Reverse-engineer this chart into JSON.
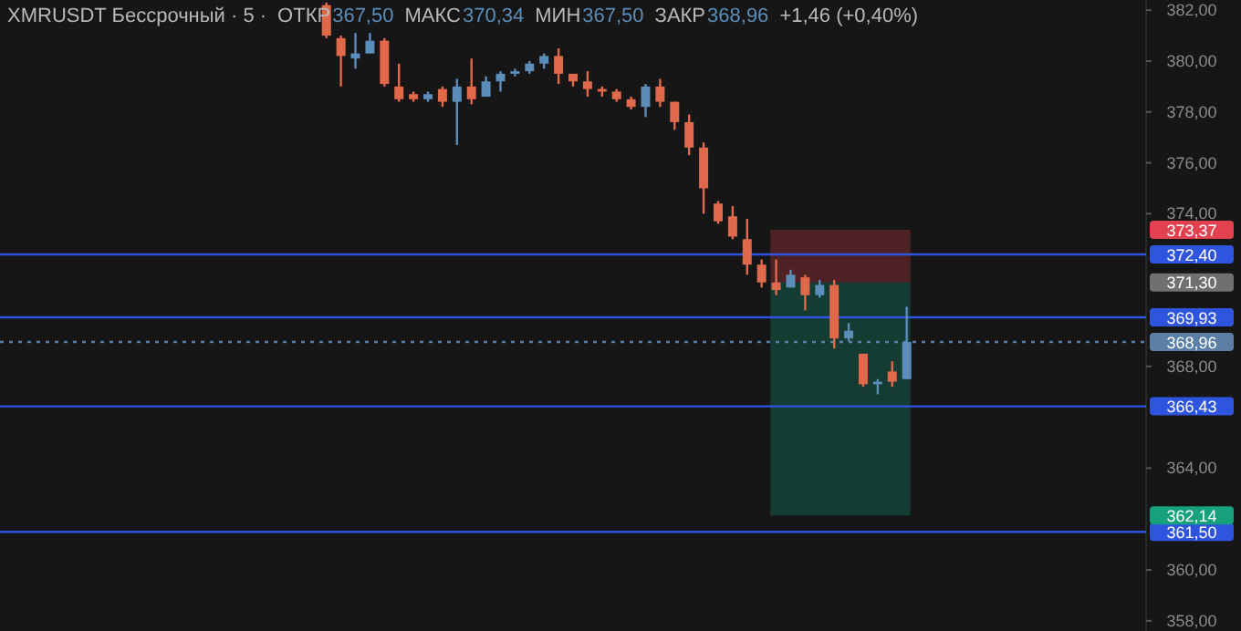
{
  "chart_data": {
    "type": "candlestick",
    "title": "XMRUSDT Бессрочный · 5 ·",
    "subtitle": [
      {
        "text": "ОТКР",
        "kind": "key"
      },
      {
        "text": "367,50",
        "kind": "num"
      },
      {
        "text": "МАКС",
        "kind": "key"
      },
      {
        "text": "370,34",
        "kind": "num"
      },
      {
        "text": "МИН",
        "kind": "key"
      },
      {
        "text": "367,50",
        "kind": "num"
      },
      {
        "text": "ЗАКР",
        "kind": "key"
      },
      {
        "text": "368,96",
        "kind": "num"
      },
      {
        "text": "+1,46 (+0,40%)",
        "kind": "key"
      }
    ],
    "categories": [
      null,
      null,
      null,
      null,
      null,
      null,
      null,
      null,
      null,
      null,
      null,
      null,
      null,
      null,
      null,
      null,
      null,
      null,
      null,
      null,
      null,
      null,
      null,
      null,
      null,
      null,
      null,
      null,
      null,
      null,
      null,
      null,
      null,
      null,
      null,
      null,
      null,
      null,
      null,
      null,
      null,
      null,
      null,
      null,
      null,
      null,
      null,
      null,
      null,
      null,
      null,
      null,
      null,
      null,
      null,
      null,
      null,
      null,
      null,
      null,
      null,
      null,
      null,
      null,
      null,
      null,
      null,
      null,
      null,
      null,
      null,
      null,
      null,
      null,
      null,
      null,
      null,
      null,
      null
    ],
    "ohlc": [
      null,
      null,
      null,
      null,
      null,
      null,
      null,
      null,
      null,
      null,
      null,
      null,
      null,
      null,
      null,
      null,
      null,
      null,
      null,
      null,
      null,
      null,
      [
        382.2,
        382.3,
        380.9,
        381.0
      ],
      [
        380.9,
        381.0,
        379.0,
        380.2
      ],
      [
        380.1,
        381.1,
        379.7,
        380.3
      ],
      [
        380.3,
        381.1,
        380.3,
        380.8
      ],
      [
        380.8,
        380.9,
        379.0,
        379.1
      ],
      [
        379.0,
        379.9,
        378.4,
        378.5
      ],
      [
        378.7,
        378.8,
        378.4,
        378.5
      ],
      [
        378.5,
        378.8,
        378.4,
        378.7
      ],
      [
        378.9,
        379.0,
        378.2,
        378.4
      ],
      [
        378.4,
        379.3,
        376.7,
        379.0
      ],
      [
        379.0,
        380.1,
        378.3,
        378.5
      ],
      [
        378.6,
        379.4,
        378.6,
        379.2
      ],
      [
        379.2,
        379.6,
        378.8,
        379.5
      ],
      [
        379.5,
        379.7,
        379.4,
        379.6
      ],
      [
        379.6,
        380.0,
        379.5,
        379.9
      ],
      [
        379.9,
        380.3,
        379.7,
        380.2
      ],
      [
        380.2,
        380.5,
        379.1,
        379.5
      ],
      [
        379.5,
        379.5,
        379.0,
        379.2
      ],
      [
        379.2,
        379.6,
        378.6,
        378.9
      ],
      [
        378.9,
        379.0,
        378.6,
        378.8
      ],
      [
        378.8,
        378.9,
        378.4,
        378.5
      ],
      [
        378.5,
        378.6,
        378.1,
        378.2
      ],
      [
        378.2,
        379.1,
        377.8,
        379.0
      ],
      [
        379.0,
        379.3,
        378.2,
        378.4
      ],
      [
        378.4,
        378.4,
        377.3,
        377.6
      ],
      [
        377.6,
        377.9,
        376.3,
        376.6
      ],
      [
        376.6,
        376.8,
        374.0,
        375.0
      ],
      [
        374.4,
        374.5,
        373.6,
        373.7
      ],
      [
        373.9,
        374.3,
        373.0,
        373.1
      ],
      [
        373.0,
        373.8,
        371.6,
        372.0
      ],
      [
        372.0,
        372.2,
        371.1,
        371.3
      ],
      [
        371.3,
        372.2,
        370.8,
        371.0
      ],
      [
        371.1,
        371.8,
        371.1,
        371.6
      ],
      [
        371.5,
        371.6,
        370.2,
        370.8
      ],
      [
        370.8,
        371.4,
        370.7,
        371.2
      ],
      [
        371.2,
        371.4,
        368.7,
        369.1
      ],
      [
        369.1,
        369.7,
        369.0,
        369.4
      ],
      [
        368.5,
        368.5,
        367.2,
        367.3
      ],
      [
        367.3,
        367.5,
        366.9,
        367.4
      ],
      [
        367.8,
        368.2,
        367.2,
        367.4
      ],
      [
        367.5,
        370.34,
        367.5,
        368.96
      ],
      null,
      null,
      null,
      null,
      null,
      null,
      null,
      null,
      null,
      null,
      null,
      null,
      null,
      null,
      null,
      null
    ],
    "colors": [
      null,
      null,
      null,
      null,
      null,
      null,
      null,
      null,
      null,
      null,
      null,
      null,
      null,
      null,
      null,
      null,
      null,
      null,
      null,
      null,
      null,
      null,
      "#e0694c",
      "#e0694c",
      "#5b8db8",
      "#5b8db8",
      "#e0694c",
      "#e0694c",
      "#e0694c",
      "#5b8db8",
      "#e0694c",
      "#5b8db8",
      "#e0694c",
      "#5b8db8",
      "#5b8db8",
      "#5b8db8",
      "#5b8db8",
      "#5b8db8",
      "#e0694c",
      "#e0694c",
      "#e0694c",
      "#e0694c",
      "#e0694c",
      "#e0694c",
      "#5b8db8",
      "#e0694c",
      "#e0694c",
      "#e0694c",
      "#e0694c",
      "#e0694c",
      "#e0694c",
      "#e0694c",
      "#e0694c",
      "#e0694c",
      "#5b8db8",
      "#e0694c",
      "#5b8db8",
      "#e0694c",
      "#5b8db8",
      "#e0694c",
      "#5b8db8",
      "#e0694c",
      "#5b8db8",
      null,
      null,
      null,
      null,
      null,
      null,
      null,
      null,
      null,
      null,
      null,
      null,
      null,
      null,
      null,
      null
    ],
    "ylim": [
      357.6,
      382.4
    ],
    "yticks": [
      {
        "value": 358,
        "label": "358,00"
      },
      {
        "value": 360,
        "label": "360,00"
      },
      {
        "value": 364,
        "label": "364,00"
      },
      {
        "value": 368,
        "label": "368,00"
      },
      {
        "value": 374,
        "label": "374,00"
      },
      {
        "value": 376,
        "label": "376,00"
      },
      {
        "value": 378,
        "label": "378,00"
      },
      {
        "value": 380,
        "label": "380,00"
      },
      {
        "value": 382,
        "label": "382,00"
      }
    ],
    "tick_labels": "y",
    "bands": [
      {
        "axis": "y",
        "from": 371.3,
        "to": 373.37,
        "color": "#e2414f"
      },
      {
        "axis": "y",
        "from": 371.3,
        "to": 362.14,
        "color": "#16a07c"
      }
    ],
    "ref_lines": [
      {
        "axis": "y",
        "value": 372.4,
        "label": "372,40",
        "color": "#2f55e0"
      },
      {
        "axis": "y",
        "value": 369.93,
        "label": "369,93",
        "color": "#2f55e0"
      },
      {
        "axis": "y",
        "value": 368.96,
        "label": "368,96",
        "color": "#5b7fa6",
        "line_style": "dotted"
      },
      {
        "axis": "y",
        "value": 366.43,
        "label": "366,43",
        "color": "#2f55e0"
      },
      {
        "axis": "y",
        "value": 361.5,
        "label": "361,50",
        "color": "#2f55e0"
      }
    ],
    "annotations": [
      "371,30",
      "373,37",
      "362,14"
    ]
  }
}
